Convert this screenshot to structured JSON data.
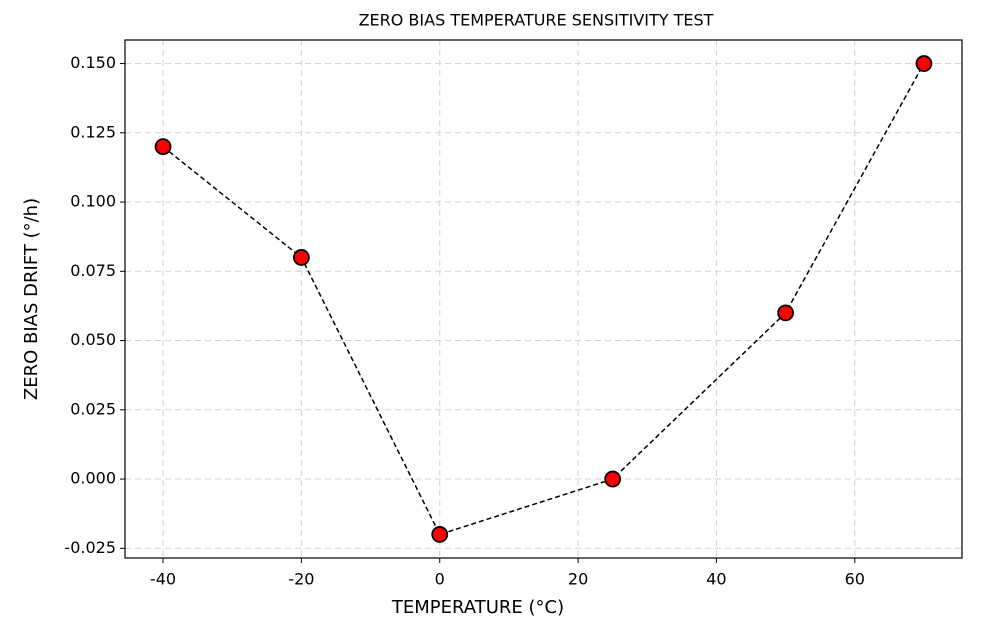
{
  "chart_data": {
    "type": "line",
    "title": "ZERO BIAS TEMPERATURE SENSITIVITY TEST",
    "x_label": "TEMPERATURE (°C)",
    "y_label": "ZERO BIAS DRIFT (°/h)",
    "x": [
      -40,
      -20,
      0,
      25,
      50,
      70
    ],
    "series": [
      {
        "color": "#ff0000",
        "values": [
          0.12,
          0.08,
          -0.02,
          0,
          0.06,
          0.15
        ]
      }
    ],
    "xlim": [
      -45.5,
      75.5
    ],
    "ylim": [
      -0.0285,
      0.1585
    ],
    "xticks": [
      -40,
      -20,
      0,
      20,
      40,
      60
    ],
    "yticks": [
      {
        "value": -0.025,
        "label": "-0.025"
      },
      {
        "value": 0,
        "label": "0.000"
      },
      {
        "value": 0.025,
        "label": "0.025"
      },
      {
        "value": 0.05,
        "label": "0.050"
      },
      {
        "value": 0.075,
        "label": "0.075"
      },
      {
        "value": 0.1,
        "label": "0.100"
      },
      {
        "value": 0.125,
        "label": "0.125"
      },
      {
        "value": 0.15,
        "label": "0.150"
      }
    ],
    "grid": true
  }
}
